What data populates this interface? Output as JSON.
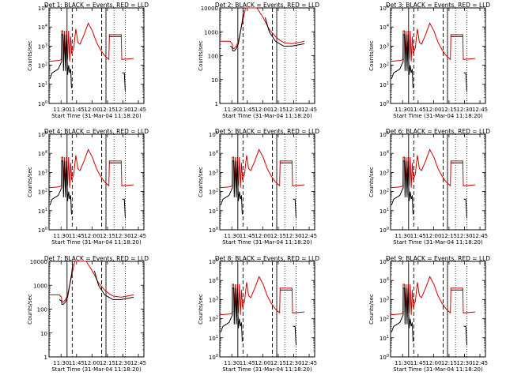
{
  "xlabel": "Start Time (31-Mar-04 11:18:20)",
  "ylabel": "Counts/sec",
  "x_tick_labels": [
    "11:30",
    "11:45",
    "12:00",
    "12:15",
    "12:30",
    "12:45"
  ],
  "colors": {
    "events": "#000000",
    "lld": "#d40000",
    "marker": "#000000"
  },
  "chart_data": [
    {
      "type": "line",
      "title": "Det 1: BLACK = Events, RED = LLD",
      "ylog": true,
      "ytick_style": "exp",
      "ylim": [
        1,
        100000
      ],
      "grid": false,
      "variant": "A"
    },
    {
      "type": "line",
      "title": "Det 2: BLACK = Events, RED = LLD",
      "ylog": true,
      "ytick_style": "plain",
      "ylim": [
        1,
        10000
      ],
      "ytick_labels": [
        "1",
        "10",
        "100",
        "1000",
        "10000"
      ],
      "grid": false,
      "variant": "B"
    },
    {
      "type": "line",
      "title": "Det 3: BLACK = Events, RED = LLD",
      "ylog": true,
      "ytick_style": "exp",
      "ylim": [
        1,
        100000
      ],
      "grid": false,
      "variant": "A"
    },
    {
      "type": "line",
      "title": "Det 4: BLACK = Events, RED = LLD",
      "ylog": true,
      "ytick_style": "exp",
      "ylim": [
        1,
        100000
      ],
      "grid": false,
      "variant": "A"
    },
    {
      "type": "line",
      "title": "Det 5: BLACK = Events, RED = LLD",
      "ylog": true,
      "ytick_style": "exp",
      "ylim": [
        1,
        100000
      ],
      "grid": false,
      "variant": "A"
    },
    {
      "type": "line",
      "title": "Det 6: BLACK = Events, RED = LLD",
      "ylog": true,
      "ytick_style": "exp",
      "ylim": [
        1,
        100000
      ],
      "grid": false,
      "variant": "A"
    },
    {
      "type": "line",
      "title": "Det 7: BLACK = Events, RED = LLD",
      "ylog": true,
      "ytick_style": "plain",
      "ylim": [
        1,
        10000
      ],
      "ytick_labels": [
        "1",
        "10",
        "100",
        "1000",
        "10000"
      ],
      "grid": false,
      "variant": "B"
    },
    {
      "type": "line",
      "title": "Det 8: BLACK = Events, RED = LLD",
      "ylog": true,
      "ytick_style": "exp",
      "ylim": [
        1,
        100000
      ],
      "grid": false,
      "variant": "A"
    },
    {
      "type": "line",
      "title": "Det 9: BLACK = Events, RED = LLD",
      "ylog": true,
      "ytick_style": "exp",
      "ylim": [
        1,
        100000
      ],
      "grid": false,
      "variant": "A"
    }
  ]
}
